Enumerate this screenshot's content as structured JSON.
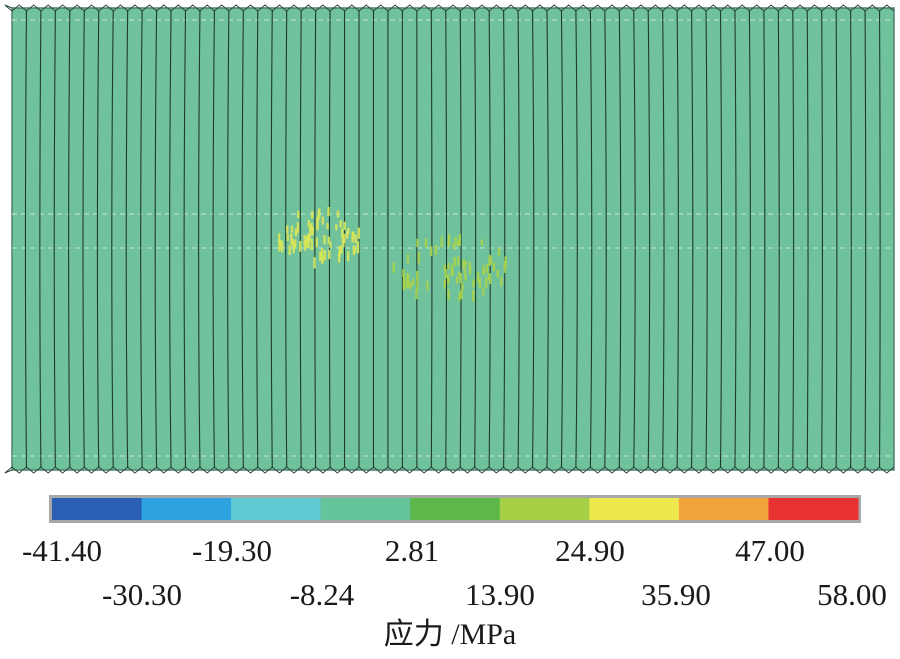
{
  "chart_data": {
    "type": "heatmap",
    "description_kind": "finite-element stress contour with color legend",
    "colorbar": {
      "colors": [
        "#2b5fb4",
        "#2ea3e0",
        "#5fc8d0",
        "#66c49a",
        "#5db84a",
        "#a6d046",
        "#ece84e",
        "#f2a43a",
        "#e83232"
      ],
      "tick_labels_row1": [
        "-41.40",
        "-19.30",
        "2.81",
        "24.90",
        "47.00"
      ],
      "tick_labels_row2": [
        "-30.30",
        "-8.24",
        "13.90",
        "35.90",
        "58.00"
      ],
      "boundaries": [
        -41.4,
        -30.3,
        -19.3,
        -8.24,
        2.81,
        13.9,
        24.9,
        35.9,
        47.0,
        58.0
      ]
    },
    "axis_title": "应力 /MPa",
    "background_color": "#6fc29c",
    "stripe_count": 61,
    "hotspots": [
      {
        "region": "left-center",
        "color": "#d9e65a"
      },
      {
        "region": "center",
        "color": "#a9d34c"
      }
    ]
  }
}
